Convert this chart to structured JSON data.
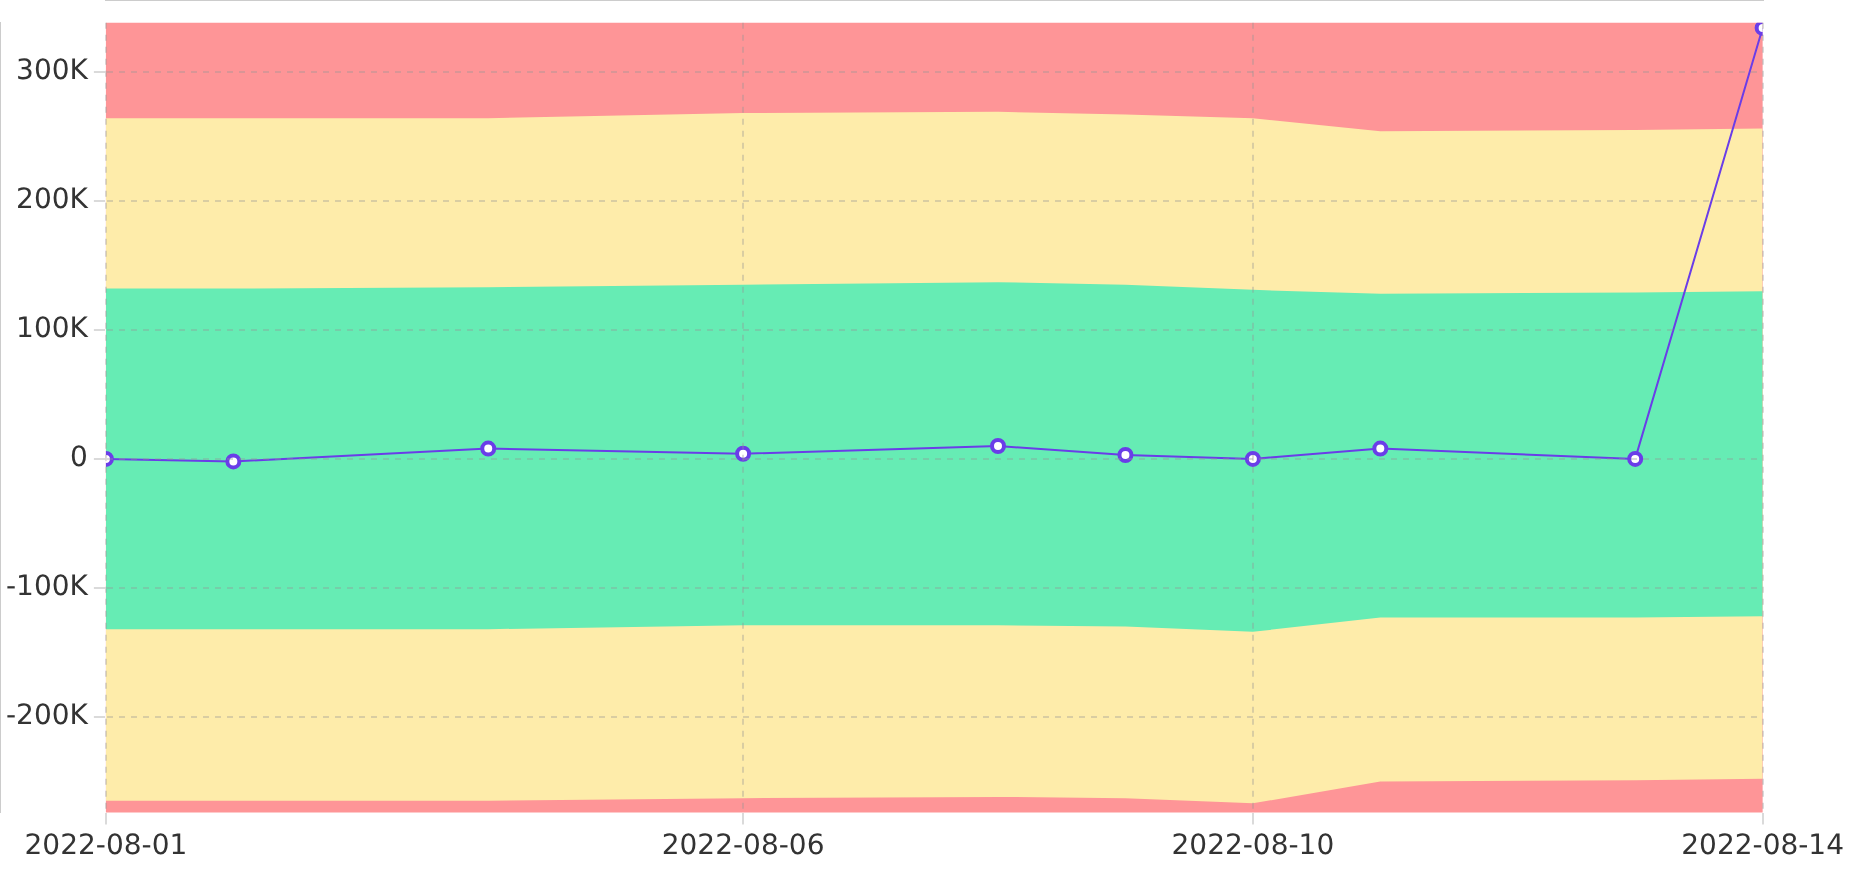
{
  "chart_data": {
    "type": "line",
    "x": [
      "2022-08-01",
      "2022-08-02",
      "2022-08-04",
      "2022-08-06",
      "2022-08-08",
      "2022-08-09",
      "2022-08-10",
      "2022-08-11",
      "2022-08-13",
      "2022-08-14"
    ],
    "series": [
      {
        "type": "area",
        "color": "#feecaa",
        "values": [
          264000,
          264000,
          264000,
          268000,
          269000,
          267000,
          264000,
          254000,
          255000,
          256000
        ]
      },
      {
        "type": "area",
        "color": "#feecaa",
        "values": [
          -265000,
          -265000,
          -265000,
          -263000,
          -262000,
          -263000,
          -267000,
          -250000,
          -249000,
          -248000
        ]
      },
      {
        "type": "area",
        "color": "#66ecb4",
        "values": [
          132000,
          132000,
          133000,
          135000,
          137000,
          135000,
          131000,
          128000,
          129000,
          130000
        ]
      },
      {
        "type": "area",
        "color": "#66ecb4",
        "values": [
          -132000,
          -132000,
          -132000,
          -129000,
          -129000,
          -130000,
          -134000,
          -123000,
          -123000,
          -122000
        ]
      },
      {
        "color": "#6a3de8",
        "marker": "circle",
        "values": [
          0,
          -2000,
          8000,
          4000,
          10000,
          3000,
          0,
          8000,
          0,
          334000
        ]
      }
    ],
    "bands": [
      {
        "axis": "y",
        "from": -274000,
        "to": 338000,
        "color": "#fe9597"
      }
    ],
    "xlim": [
      "2022-08-01",
      "2022-08-14"
    ],
    "xticks": [
      "2022-08-01",
      "2022-08-06",
      "2022-08-10",
      "2022-08-14"
    ],
    "ylim": [
      -274000,
      338000
    ],
    "yticks": [
      {
        "value": -200000,
        "label": "-200K"
      },
      {
        "value": -100000,
        "label": "-100K"
      },
      0,
      {
        "value": 100000,
        "label": "100K"
      },
      {
        "value": 200000,
        "label": "200K"
      },
      {
        "value": 300000,
        "label": "300K"
      }
    ],
    "grid": true,
    "legend": false
  }
}
